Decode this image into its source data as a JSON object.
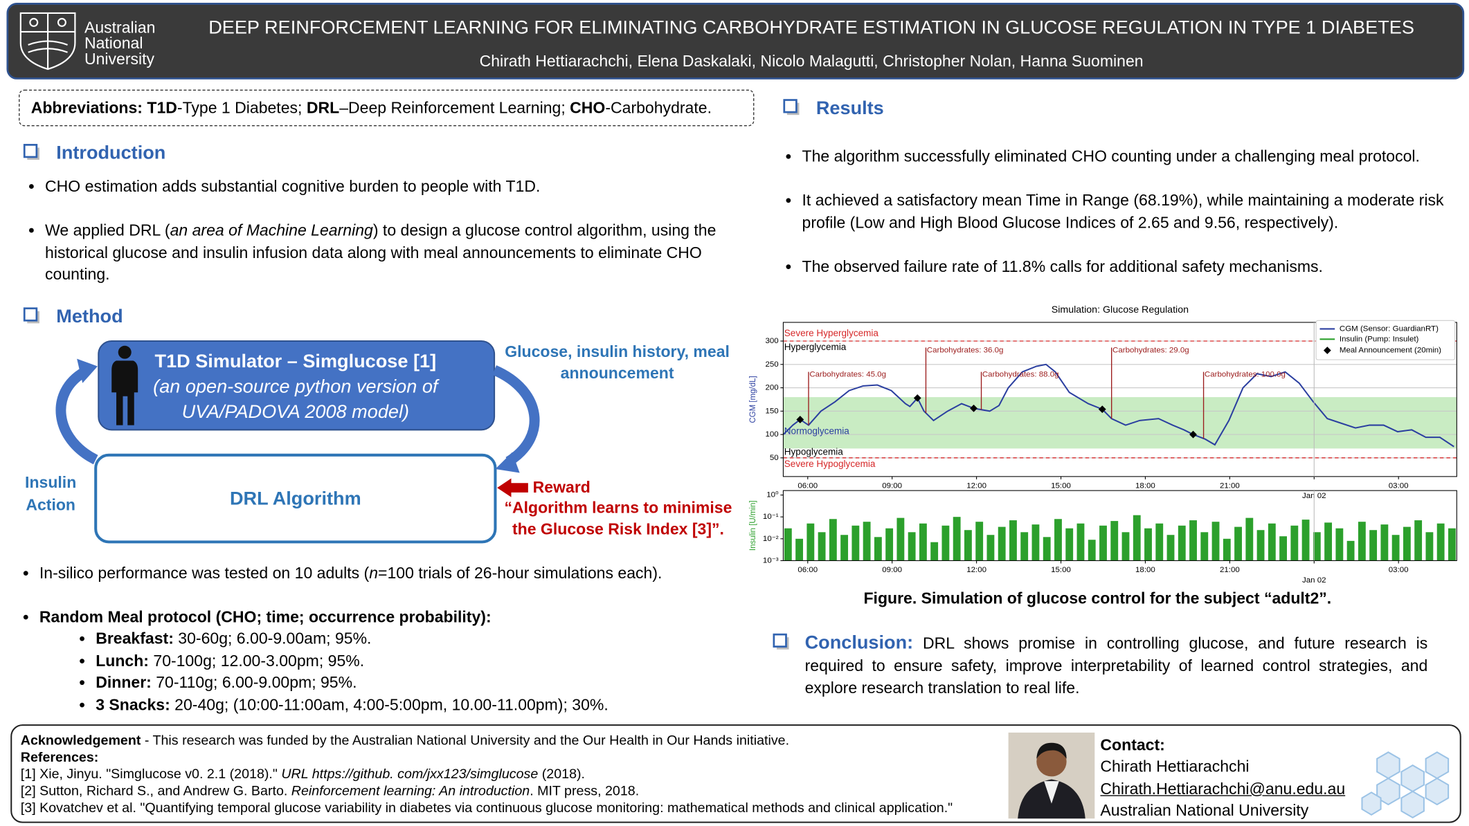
{
  "header": {
    "logo_lines": [
      "Australian",
      "National",
      "University"
    ],
    "title": "DEEP REINFORCEMENT LEARNING FOR ELIMINATING CARBOHYDRATE ESTIMATION IN GLUCOSE REGULATION IN TYPE 1 DIABETES",
    "authors": "Chirath Hettiarachchi, Elena Daskalaki, Nicolo Malagutti, Christopher Nolan, Hanna Suominen"
  },
  "abbreviations": [
    {
      "text": "Abbreviations: T1D",
      "bold": true
    },
    {
      "text": "-Type 1 Diabetes; "
    },
    {
      "text": "DRL",
      "bold": true
    },
    {
      "text": "–Deep Reinforcement Learning; "
    },
    {
      "text": "CHO",
      "bold": true
    },
    {
      "text": "-Carbohydrate."
    }
  ],
  "introduction": {
    "heading": "Introduction",
    "bullets": [
      [
        {
          "text": "CHO estimation adds substantial cognitive burden to people with T1D."
        }
      ],
      [
        {
          "text": "We applied DRL ("
        },
        {
          "text": "an area of Machine Learning",
          "italic": true
        },
        {
          "text": ") to design a glucose control algorithm, using the historical glucose and insulin infusion data along with meal announcements to eliminate CHO counting."
        }
      ]
    ]
  },
  "method": {
    "heading": "Method",
    "diagram": {
      "simulator_title": "T1D Simulator – Simglucose [1]",
      "simulator_subtitle": "(an open-source python version of UVA/PADOVA 2008 model)",
      "algorithm": "DRL Algorithm",
      "state_label": "Glucose, insulin history, meal announcement",
      "action_label": "Insulin Action",
      "reward_label": "Reward",
      "reward_note": "“Algorithm learns to minimise the Glucose Risk Index [3]”."
    },
    "bullets": [
      [
        {
          "text": "In-silico performance was tested on 10 adults ("
        },
        {
          "text": "n",
          "italic": true
        },
        {
          "text": "=100 trials of 26-hour simulations each)."
        }
      ],
      [
        {
          "text": "Random Meal protocol (CHO; time; occurrence probability):",
          "bold": true
        }
      ]
    ],
    "meals": [
      [
        {
          "text": "Breakfast:",
          "bold": true
        },
        {
          "text": " 30-60g; 6.00-9.00am; 95%."
        }
      ],
      [
        {
          "text": "Lunch:",
          "bold": true
        },
        {
          "text": " 70-100g; 12.00-3.00pm; 95%."
        }
      ],
      [
        {
          "text": "Dinner:",
          "bold": true
        },
        {
          "text": " 70-110g; 6.00-9.00pm; 95%."
        }
      ],
      [
        {
          "text": "3 Snacks:",
          "bold": true
        },
        {
          "text": " 20-40g; (10:00-11:00am, 4:00-5:00pm, 10.00-11.00pm); 30%."
        }
      ]
    ]
  },
  "results": {
    "heading": "Results",
    "bullets": [
      "The algorithm successfully eliminated CHO counting under a challenging meal protocol.",
      "It achieved a satisfactory mean Time in Range (68.19%), while maintaining a moderate risk profile (Low and High Blood Glucose Indices of 2.65 and 9.56, respectively).",
      "The observed failure rate of 11.8% calls for additional safety mechanisms."
    ]
  },
  "figure": {
    "chart_data": [
      {
        "type": "line",
        "title": "Simulation: Glucose Regulation",
        "ylabel": "CGM [mg/dL]",
        "grid": true,
        "xlim": [
          5.13,
          29.07
        ],
        "ylim": [
          10,
          340
        ],
        "yticks": [
          50,
          100,
          150,
          200,
          250,
          300
        ],
        "xticks": [
          {
            "value": 6,
            "label": "06:00"
          },
          {
            "value": 9,
            "label": "09:00"
          },
          {
            "value": 12,
            "label": "12:00"
          },
          {
            "value": 15,
            "label": "15:00"
          },
          {
            "value": 18,
            "label": "18:00"
          },
          {
            "value": 21,
            "label": "21:00"
          },
          {
            "value": 24,
            "label": "Jan 02"
          },
          {
            "value": 27,
            "label": "03:00"
          }
        ],
        "x": [
          5.13,
          5.47,
          5.73,
          6.03,
          6.47,
          6.97,
          7.47,
          7.97,
          8.47,
          8.97,
          9.47,
          9.63,
          9.9,
          10.13,
          10.47,
          10.97,
          11.47,
          11.9,
          12.47,
          12.8,
          13.13,
          13.63,
          14.13,
          14.47,
          14.8,
          15.3,
          15.97,
          16.47,
          16.8,
          17.3,
          17.8,
          18.47,
          18.97,
          19.37,
          19.7,
          20.13,
          20.47,
          20.97,
          21.47,
          21.97,
          22.47,
          22.97,
          23.47,
          23.97,
          24.47,
          24.97,
          25.47,
          25.97,
          26.47,
          26.97,
          27.47,
          27.97,
          28.47,
          28.97
        ],
        "series": [
          {
            "name": "CGM (Sensor: GuardianRT)",
            "color": "#2b3fa0",
            "values": [
              100,
              120,
              132,
              120,
              150,
              170,
              194,
              204,
              206,
              194,
              166,
              160,
              178,
              150,
              130,
              150,
              166,
              156,
              150,
              162,
              200,
              234,
              246,
              250,
              234,
              190,
              166,
              154,
              134,
              120,
              130,
              134,
              120,
              110,
              100,
              90,
              78,
              130,
              200,
              230,
              224,
              234,
              210,
              170,
              134,
              124,
              114,
              120,
              120,
              106,
              110,
              94,
              94,
              74
            ]
          }
        ],
        "meals": {
          "name": "Meal Announcement (20min)",
          "color": "#000000",
          "x": [
            5.73,
            9.9,
            11.9,
            16.47,
            19.7
          ],
          "values": [
            132,
            178,
            156,
            154,
            100
          ]
        },
        "carbs": [
          {
            "x": 6.03,
            "label": "Carbohydrates: 45.0g"
          },
          {
            "x": 10.2,
            "label": "Carbohydrates: 36.0g"
          },
          {
            "x": 12.17,
            "label": "Carbohydrates: 88.0g"
          },
          {
            "x": 16.8,
            "label": "Carbohydrates: 29.0g"
          },
          {
            "x": 20.07,
            "label": "Carbohydrates: 100.0g"
          }
        ],
        "zones": [
          {
            "label": "Severe Hyperglycemia",
            "value": 300,
            "color": "#d62728"
          },
          {
            "label": "Hyperglycemia",
            "color": "#000000"
          },
          {
            "label": "Normoglycemia",
            "range": [
              70,
              180
            ],
            "color": "#2b3fa0"
          },
          {
            "label": "Hypoglycemia",
            "color": "#000000"
          },
          {
            "label": "Severe Hypoglycemia",
            "value": 50,
            "color": "#d62728"
          }
        ]
      },
      {
        "type": "bar",
        "name": "Insulin (Pump: Insulet)",
        "ylabel": "Insulin [U/min]",
        "color": "#2ca02c",
        "log": true,
        "xlim": [
          5.13,
          29.07
        ],
        "ylim": [
          0.001,
          1.6
        ],
        "yticks": [
          {
            "value": 1,
            "label": "10⁰"
          },
          {
            "value": 0.1,
            "label": "10⁻¹"
          },
          {
            "value": 0.01,
            "label": "10⁻²"
          },
          {
            "value": 0.001,
            "label": "10⁻³"
          }
        ],
        "xticks": [
          {
            "value": 6,
            "label": "06:00"
          },
          {
            "value": 9,
            "label": "09:00"
          },
          {
            "value": 12,
            "label": "12:00"
          },
          {
            "value": 15,
            "label": "15:00"
          },
          {
            "value": 18,
            "label": "18:00"
          },
          {
            "value": 21,
            "label": "21:00"
          },
          {
            "value": 24,
            "label": "Jan 02"
          },
          {
            "value": 27,
            "label": "03:00"
          }
        ],
        "x": [
          5.3,
          5.7,
          6.1,
          6.5,
          6.9,
          7.3,
          7.7,
          8.1,
          8.5,
          8.9,
          9.3,
          9.7,
          10.1,
          10.5,
          10.9,
          11.3,
          11.7,
          12.1,
          12.5,
          12.9,
          13.3,
          13.7,
          14.1,
          14.5,
          14.9,
          15.3,
          15.7,
          16.1,
          16.5,
          16.9,
          17.3,
          17.7,
          18.1,
          18.5,
          18.9,
          19.3,
          19.7,
          20.1,
          20.5,
          20.9,
          21.3,
          21.7,
          22.1,
          22.5,
          22.9,
          23.3,
          23.7,
          24.1,
          24.5,
          24.9,
          25.3,
          25.7,
          26.1,
          26.5,
          26.9,
          27.3,
          27.7,
          28.1,
          28.5,
          28.9
        ],
        "values": [
          0.03,
          0.01,
          0.05,
          0.02,
          0.08,
          0.015,
          0.04,
          0.06,
          0.012,
          0.03,
          0.09,
          0.02,
          0.05,
          0.007,
          0.04,
          0.1,
          0.025,
          0.06,
          0.015,
          0.035,
          0.07,
          0.02,
          0.045,
          0.012,
          0.08,
          0.03,
          0.05,
          0.009,
          0.04,
          0.065,
          0.02,
          0.12,
          0.03,
          0.05,
          0.015,
          0.04,
          0.07,
          0.02,
          0.06,
          0.01,
          0.035,
          0.09,
          0.025,
          0.05,
          0.013,
          0.04,
          0.075,
          0.02,
          0.055,
          0.03,
          0.008,
          0.06,
          0.025,
          0.045,
          0.015,
          0.035,
          0.07,
          0.02,
          0.05,
          0.03
        ]
      }
    ],
    "caption": "Figure. Simulation of glucose control for the subject “adult2”."
  },
  "conclusion": {
    "heading": "Conclusion:",
    "text": "DRL shows promise in controlling glucose, and future research is required to ensure safety, improve interpretability of learned control strategies, and explore research translation to real life."
  },
  "footer": {
    "acknowledgement": [
      {
        "text": "Acknowledgement",
        "bold": true
      },
      {
        "text": " - This research was funded by the Australian National University and the Our Health in Our Hands initiative."
      }
    ],
    "references_heading": "References:",
    "references": [
      [
        {
          "text": "[1] Xie, Jinyu. \"Simglucose v0. 2.1 (2018).\" "
        },
        {
          "text": "URL https://github. com/jxx123/simglucose",
          "italic": true
        },
        {
          "text": " (2018)."
        }
      ],
      [
        {
          "text": "[2] Sutton, Richard S., and Andrew G. Barto. "
        },
        {
          "text": "Reinforcement learning: An introduction",
          "italic": true
        },
        {
          "text": ". MIT press, 2018."
        }
      ],
      [
        {
          "text": "[3] Kovatchev et al. \"Quantifying temporal glucose variability in diabetes via continuous glucose monitoring: mathematical methods and clinical application.\""
        }
      ]
    ],
    "contact": {
      "label": "Contact:",
      "name": "Chirath Hettiarachchi",
      "email": "Chirath.Hettiarachchi@anu.edu.au",
      "institution": "Australian National University"
    }
  }
}
